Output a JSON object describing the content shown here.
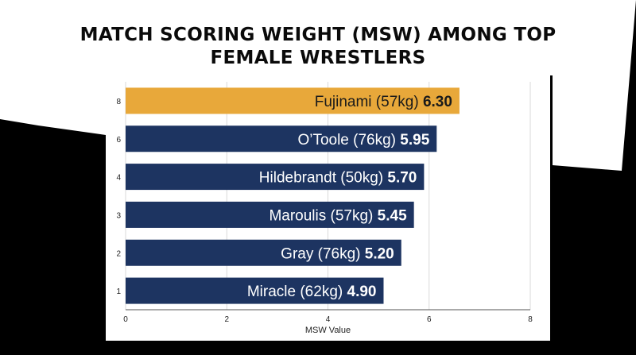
{
  "title_lines": [
    "MATCH SCORING WEIGHT (MSW) AMONG TOP",
    "FEMALE WRESTLERS"
  ],
  "colors": {
    "background": "#000000",
    "banner": "#ffffff",
    "highlight_bar": "#e8a83a",
    "bar": "#1d3461",
    "highlight_text": "#1a1a1a",
    "bar_text": "#ffffff"
  },
  "chart_data": {
    "type": "bar",
    "orientation": "horizontal",
    "title": "MATCH SCORING WEIGHT (MSW) AMONG TOP FEMALE WRESTLERS",
    "xlabel": "MSW Value",
    "ylabel": "",
    "xlim": [
      0,
      8
    ],
    "x_ticks": [
      0,
      2,
      4,
      6,
      8
    ],
    "grid": true,
    "categories": [
      "8",
      "6",
      "4",
      "3",
      "2",
      "1"
    ],
    "bars": [
      {
        "rank": "8",
        "name": "Fujinami (57kg)",
        "value": 6.3,
        "value_label": "6.30",
        "bar_length": 6.6,
        "highlight": true
      },
      {
        "rank": "6",
        "name": "O’Toole (76kg)",
        "value": 5.95,
        "value_label": "5.95",
        "bar_length": 6.15,
        "highlight": false
      },
      {
        "rank": "4",
        "name": "Hildebrandt (50kg)",
        "value": 5.7,
        "value_label": "5.70",
        "bar_length": 5.9,
        "highlight": false
      },
      {
        "rank": "3",
        "name": "Maroulis (57kg)",
        "value": 5.45,
        "value_label": "5.45",
        "bar_length": 5.7,
        "highlight": false
      },
      {
        "rank": "2",
        "name": "Gray (76kg)",
        "value": 5.2,
        "value_label": "5.20",
        "bar_length": 5.45,
        "highlight": false
      },
      {
        "rank": "1",
        "name": "Miracle (62kg)",
        "value": 4.9,
        "value_label": "4.90",
        "bar_length": 5.1,
        "highlight": false
      }
    ]
  }
}
